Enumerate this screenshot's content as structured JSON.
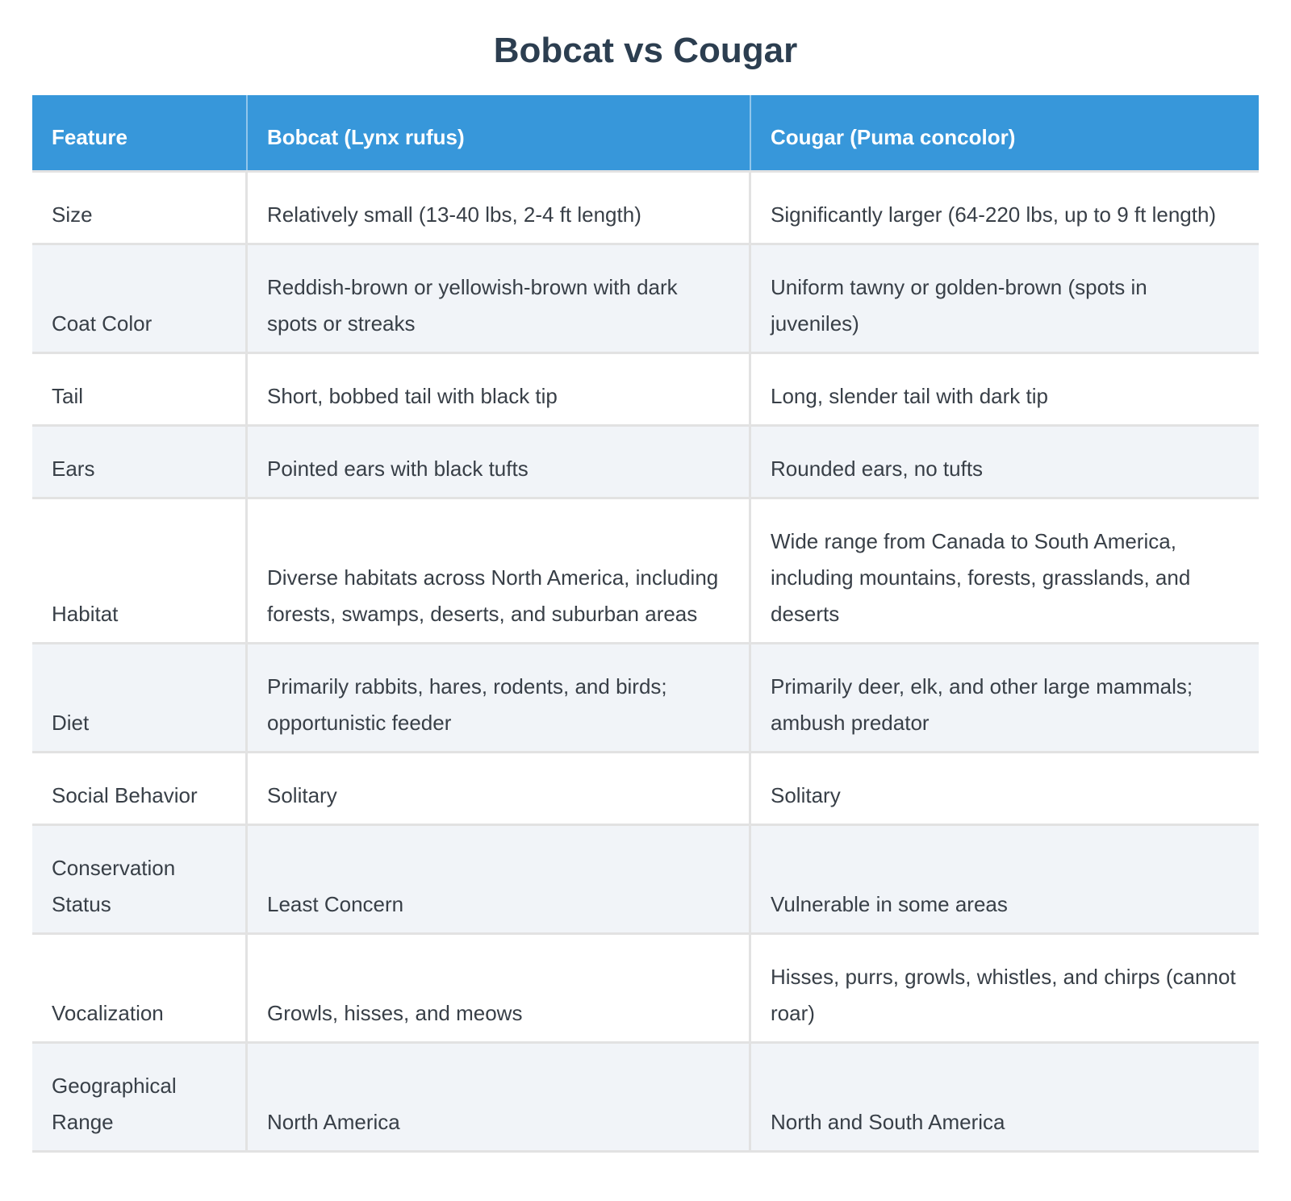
{
  "title": "Bobcat vs Cougar",
  "colors": {
    "header_bg": "#3797da",
    "header_text": "#ffffff",
    "stripe_bg": "#f1f4f8",
    "border": "#e2e2e2",
    "title_text": "#2c3e50",
    "body_text": "#383f47"
  },
  "table": {
    "headers": [
      "Feature",
      "Bobcat (Lynx rufus)",
      "Cougar (Puma concolor)"
    ],
    "rows": [
      {
        "feature": "Size",
        "bobcat": "Relatively small (13-40 lbs, 2-4 ft length)",
        "cougar": "Significantly larger (64-220 lbs, up to 9 ft length)"
      },
      {
        "feature": "Coat Color",
        "bobcat": "Reddish-brown or yellowish-brown with dark spots or streaks",
        "cougar": "Uniform tawny or golden-brown (spots in juveniles)"
      },
      {
        "feature": "Tail",
        "bobcat": "Short, bobbed tail with black tip",
        "cougar": "Long, slender tail with dark tip"
      },
      {
        "feature": "Ears",
        "bobcat": "Pointed ears with black tufts",
        "cougar": "Rounded ears, no tufts"
      },
      {
        "feature": "Habitat",
        "bobcat": "Diverse habitats across North America, including forests, swamps, deserts, and suburban areas",
        "cougar": "Wide range from Canada to South America, including mountains, forests, grasslands, and deserts"
      },
      {
        "feature": "Diet",
        "bobcat": "Primarily rabbits, hares, rodents, and birds; opportunistic feeder",
        "cougar": "Primarily deer, elk, and other large mammals; ambush predator"
      },
      {
        "feature": "Social Behavior",
        "bobcat": "Solitary",
        "cougar": "Solitary"
      },
      {
        "feature": "Conservation Status",
        "bobcat": "Least Concern",
        "cougar": "Vulnerable in some areas"
      },
      {
        "feature": "Vocalization",
        "bobcat": "Growls, hisses, and meows",
        "cougar": "Hisses, purrs, growls, whistles, and chirps (cannot roar)"
      },
      {
        "feature": "Geographical Range",
        "bobcat": "North America",
        "cougar": "North and South America"
      }
    ]
  }
}
